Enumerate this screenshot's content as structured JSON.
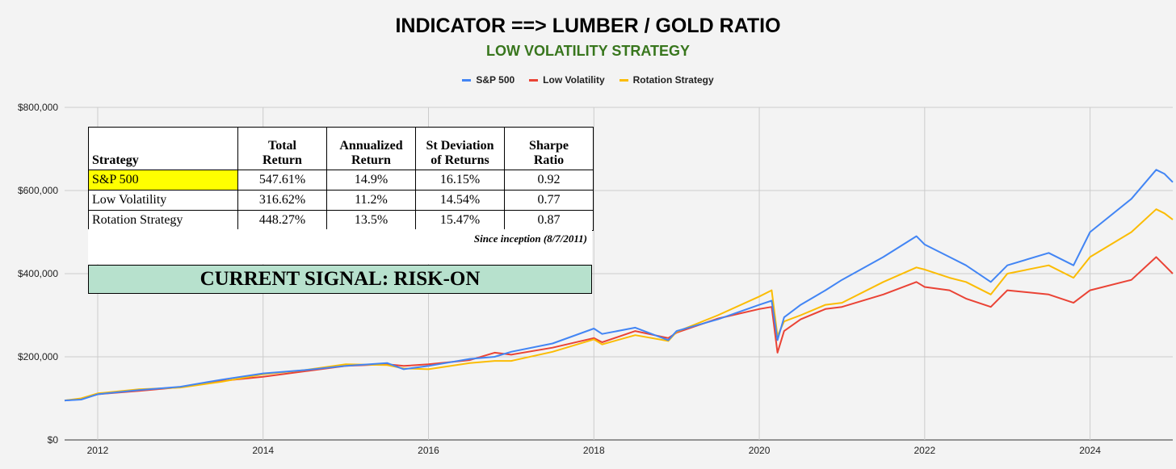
{
  "chart_data": {
    "type": "line",
    "title": "INDICATOR ==> LUMBER / GOLD RATIO",
    "subtitle": "LOW VOLATILITY STRATEGY",
    "xlabel": "",
    "ylabel": "",
    "xlim": [
      2011.6,
      2025.0
    ],
    "ylim": [
      0,
      800000
    ],
    "x_ticks": [
      2012,
      2014,
      2016,
      2018,
      2020,
      2022,
      2024
    ],
    "x_tick_labels": [
      "2012",
      "2014",
      "2016",
      "2018",
      "2020",
      "2022",
      "2024"
    ],
    "y_ticks": [
      0,
      200000,
      400000,
      600000,
      800000
    ],
    "y_tick_labels": [
      "$0",
      "$200,000",
      "$400,000",
      "$600,000",
      "$800,000"
    ],
    "grid": true,
    "legend_position": "top-center",
    "x": [
      2011.6,
      2011.8,
      2012.0,
      2012.5,
      2013.0,
      2013.5,
      2014.0,
      2014.5,
      2015.0,
      2015.5,
      2015.7,
      2016.0,
      2016.5,
      2016.8,
      2017.0,
      2017.5,
      2018.0,
      2018.1,
      2018.5,
      2018.9,
      2019.0,
      2019.5,
      2020.0,
      2020.15,
      2020.22,
      2020.3,
      2020.5,
      2020.8,
      2021.0,
      2021.5,
      2021.9,
      2022.0,
      2022.3,
      2022.5,
      2022.8,
      2023.0,
      2023.5,
      2023.8,
      2024.0,
      2024.5,
      2024.8,
      2024.9,
      2025.0
    ],
    "series": [
      {
        "name": "S&P 500",
        "color": "#4285f4",
        "values": [
          95000,
          97000,
          110000,
          120000,
          128000,
          145000,
          160000,
          168000,
          178000,
          185000,
          170000,
          178000,
          195000,
          200000,
          212000,
          232000,
          268000,
          255000,
          270000,
          240000,
          262000,
          290000,
          325000,
          335000,
          240000,
          295000,
          325000,
          360000,
          385000,
          440000,
          490000,
          470000,
          440000,
          420000,
          380000,
          420000,
          450000,
          420000,
          500000,
          580000,
          650000,
          640000,
          620000
        ]
      },
      {
        "name": "Low Volatility",
        "color": "#ea4335",
        "values": [
          95000,
          98000,
          110000,
          118000,
          127000,
          142000,
          152000,
          165000,
          178000,
          182000,
          178000,
          182000,
          192000,
          210000,
          205000,
          222000,
          245000,
          235000,
          262000,
          245000,
          258000,
          292000,
          315000,
          320000,
          210000,
          262000,
          290000,
          315000,
          320000,
          350000,
          380000,
          368000,
          360000,
          340000,
          320000,
          360000,
          350000,
          330000,
          360000,
          385000,
          440000,
          420000,
          400000
        ]
      },
      {
        "name": "Rotation Strategy",
        "color": "#fbbc04",
        "values": [
          95000,
          100000,
          112000,
          122000,
          126000,
          140000,
          158000,
          168000,
          182000,
          180000,
          172000,
          170000,
          185000,
          190000,
          190000,
          212000,
          242000,
          230000,
          252000,
          238000,
          260000,
          300000,
          345000,
          360000,
          250000,
          285000,
          300000,
          325000,
          330000,
          380000,
          415000,
          410000,
          390000,
          380000,
          350000,
          400000,
          420000,
          390000,
          440000,
          500000,
          555000,
          545000,
          530000
        ]
      }
    ]
  },
  "table": {
    "headers": [
      [
        "",
        "Strategy"
      ],
      [
        "Total",
        "Return"
      ],
      [
        "Annualized",
        "Return"
      ],
      [
        "St Deviation",
        "of Returns"
      ],
      [
        "Sharpe",
        "Ratio"
      ]
    ],
    "rows": [
      [
        "S&P 500",
        "547.61%",
        "14.9%",
        "16.15%",
        "0.92"
      ],
      [
        "Low Volatility",
        "316.62%",
        "11.2%",
        "14.54%",
        "0.77"
      ],
      [
        "Rotation Strategy",
        "448.27%",
        "13.5%",
        "15.47%",
        "0.87"
      ]
    ],
    "highlight_color": "#ffff00"
  },
  "note": "Since inception (8/7/2011)",
  "signal": {
    "text": "CURRENT SIGNAL: RISK-ON",
    "background": "#b7e1cd"
  },
  "colors": {
    "background": "#f3f3f3",
    "grid": "#cccccc",
    "subtitle": "#38761d"
  }
}
